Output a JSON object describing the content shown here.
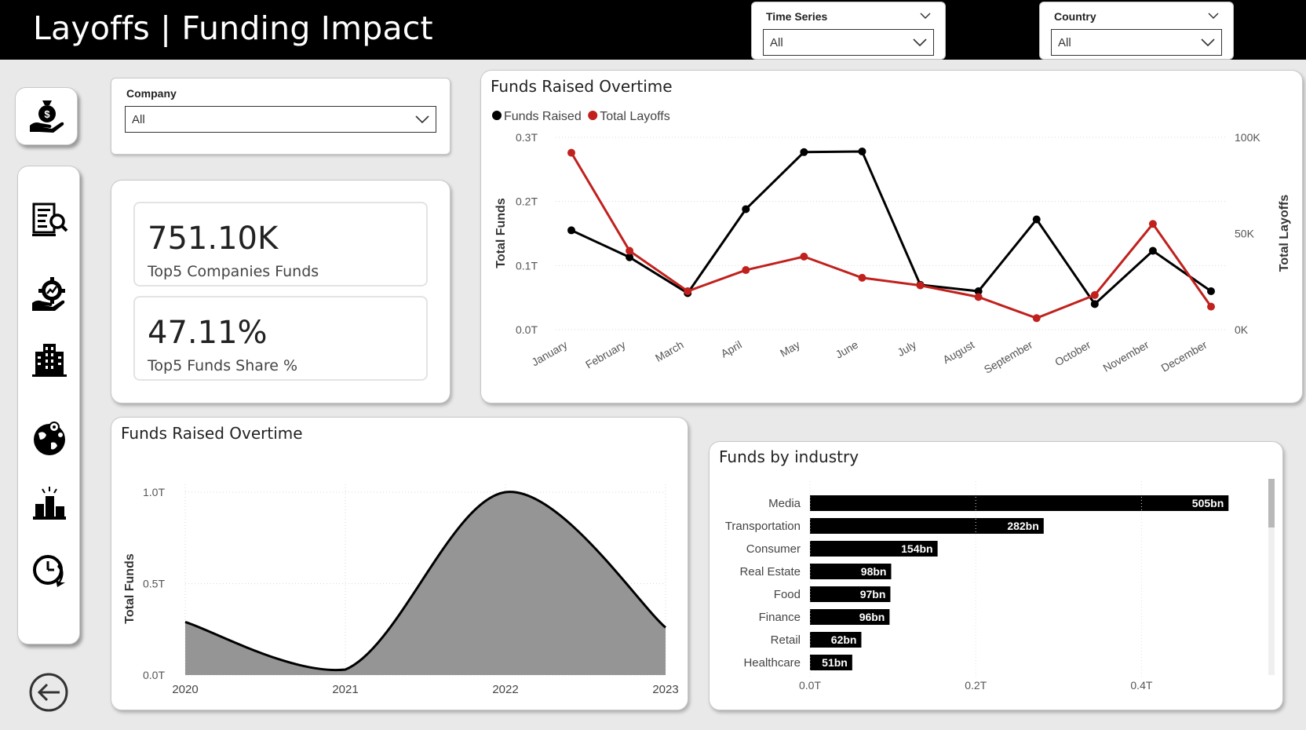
{
  "header": {
    "title": "Layoffs | Funding Impact"
  },
  "filters": {
    "time_series": {
      "label": "Time Series",
      "value": "All"
    },
    "country": {
      "label": "Country",
      "value": "All"
    },
    "company": {
      "label": "Company",
      "value": "All"
    }
  },
  "nav": {
    "items": [
      "funding-icon",
      "report-search-icon",
      "growth-gear-icon",
      "building-icon",
      "globe-icon",
      "podium-icon",
      "clock-refresh-icon"
    ],
    "back": "back-arrow-icon"
  },
  "kpis": [
    {
      "value": "751.10K",
      "label": "Top5 Companies Funds"
    },
    {
      "value": "47.11%",
      "label": "Top5 Funds Share %"
    }
  ],
  "chart_data": [
    {
      "type": "line",
      "title": "Funds Raised Overtime",
      "legend": [
        "Funds Raised",
        "Total Layoffs"
      ],
      "categories": [
        "January",
        "February",
        "March",
        "April",
        "May",
        "June",
        "July",
        "August",
        "September",
        "October",
        "November",
        "December"
      ],
      "series": [
        {
          "name": "Funds Raised",
          "axis": "left",
          "color": "#000000",
          "values": [
            0.155,
            0.113,
            0.057,
            0.188,
            0.277,
            0.278,
            0.07,
            0.06,
            0.172,
            0.04,
            0.123,
            0.06
          ]
        },
        {
          "name": "Total Layoffs",
          "axis": "right",
          "color": "#c0211d",
          "values": [
            92000,
            41000,
            20000,
            31000,
            38000,
            27000,
            23000,
            17000,
            6000,
            18000,
            55000,
            12000
          ]
        }
      ],
      "ylabel": "Total Funds",
      "y2label": "Total Layoffs",
      "ylim": [
        0,
        0.3
      ],
      "y2lim": [
        0,
        100000
      ],
      "yticks": [
        "0.0T",
        "0.1T",
        "0.2T",
        "0.3T"
      ],
      "y2ticks": [
        "0K",
        "50K",
        "100K"
      ]
    },
    {
      "type": "area",
      "title": "Funds Raised Overtime",
      "categories": [
        "2020",
        "2021",
        "2022",
        "2023"
      ],
      "values": [
        0.29,
        0.03,
        1.0,
        0.26
      ],
      "ylabel": "Total Funds",
      "ylim": [
        0,
        1.0
      ],
      "yticks": [
        "0.0T",
        "0.5T",
        "1.0T"
      ]
    },
    {
      "type": "bar",
      "orientation": "horizontal",
      "title": "Funds by industry",
      "categories": [
        "Media",
        "Transportation",
        "Consumer",
        "Real Estate",
        "Food",
        "Finance",
        "Retail",
        "Healthcare"
      ],
      "values": [
        505,
        282,
        154,
        98,
        97,
        96,
        62,
        51
      ],
      "value_labels": [
        "505bn",
        "282bn",
        "154bn",
        "98bn",
        "97bn",
        "96bn",
        "62bn",
        "51bn"
      ],
      "xlim": [
        0,
        0.5
      ],
      "xticks": [
        "0.0T",
        "0.2T",
        "0.4T"
      ]
    }
  ]
}
